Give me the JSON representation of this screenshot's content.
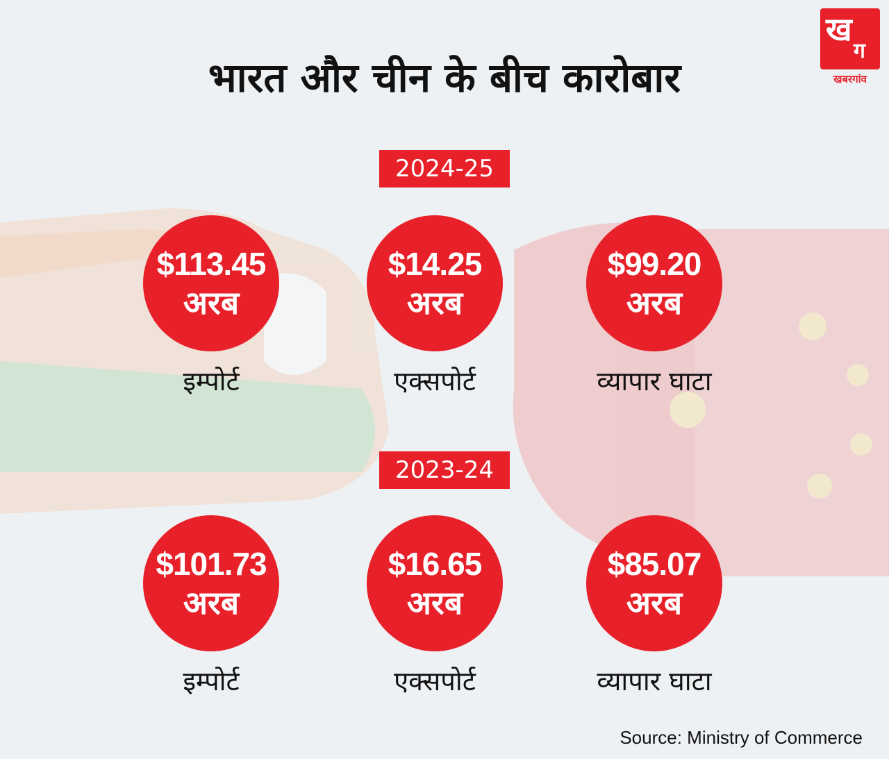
{
  "title": "भारत और चीन के बीच कारोबार",
  "logo": {
    "mark_main": "ख",
    "mark_sub": "ग",
    "name": "खबरगांव"
  },
  "colors": {
    "accent": "#e8202a",
    "background": "#eef1f4",
    "text": "#111111"
  },
  "sections": [
    {
      "year": "2024-25",
      "items": [
        {
          "value": "$113.45",
          "unit": "अरब",
          "label": "इम्पोर्ट"
        },
        {
          "value": "$14.25",
          "unit": "अरब",
          "label": "एक्सपोर्ट"
        },
        {
          "value": "$99.20",
          "unit": "अरब",
          "label": "व्यापार घाटा"
        }
      ]
    },
    {
      "year": "2023-24",
      "items": [
        {
          "value": "$101.73",
          "unit": "अरब",
          "label": "इम्पोर्ट"
        },
        {
          "value": "$16.65",
          "unit": "अरब",
          "label": "एक्सपोर्ट"
        },
        {
          "value": "$85.07",
          "unit": "अरब",
          "label": "व्यापार घाटा"
        }
      ]
    }
  ],
  "source": "Source: Ministry of Commerce"
}
